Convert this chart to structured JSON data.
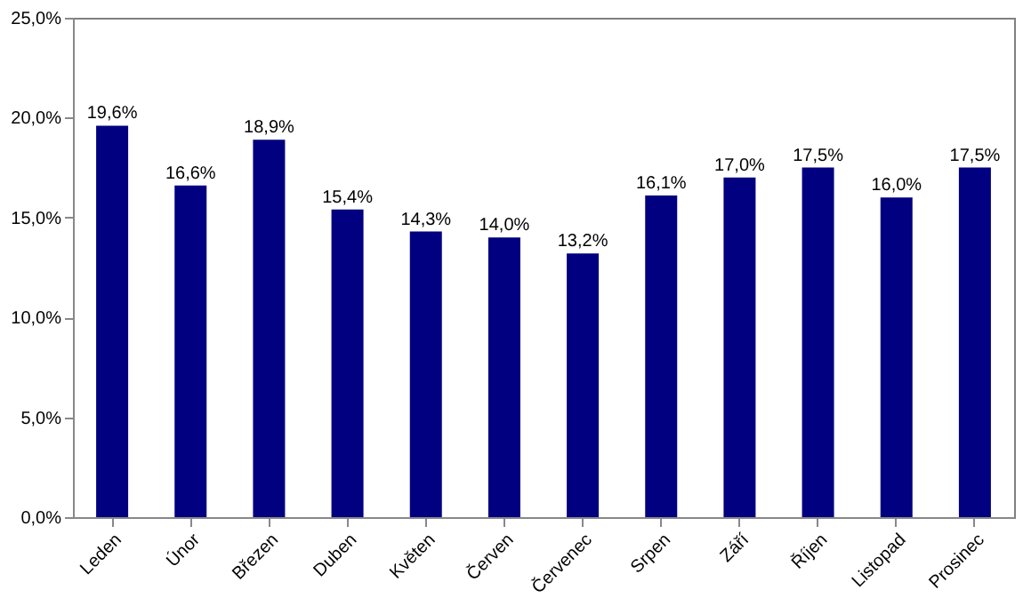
{
  "chart_data": {
    "type": "bar",
    "categories": [
      "Leden",
      "Únor",
      "Březen",
      "Duben",
      "Květen",
      "Červen",
      "Červenec",
      "Srpen",
      "Září",
      "Říjen",
      "Listopad",
      "Prosinec"
    ],
    "values": [
      19.6,
      16.6,
      18.9,
      15.4,
      14.3,
      14.0,
      13.2,
      16.1,
      17.0,
      17.5,
      16.0,
      17.5
    ],
    "value_labels": [
      "19,6%",
      "16,6%",
      "18,9%",
      "15,4%",
      "14,3%",
      "14,0%",
      "13,2%",
      "16,1%",
      "17,0%",
      "17,5%",
      "16,0%",
      "17,5%"
    ],
    "color": "#000080",
    "ylim": [
      0,
      25
    ],
    "yticks": [
      {
        "value": 0,
        "label": "0,0%"
      },
      {
        "value": 5,
        "label": "5,0%"
      },
      {
        "value": 10,
        "label": "10,0%"
      },
      {
        "value": 15,
        "label": "15,0%"
      },
      {
        "value": 20,
        "label": "20,0%"
      },
      {
        "value": 25,
        "label": "25,0%"
      }
    ],
    "grid": false
  }
}
